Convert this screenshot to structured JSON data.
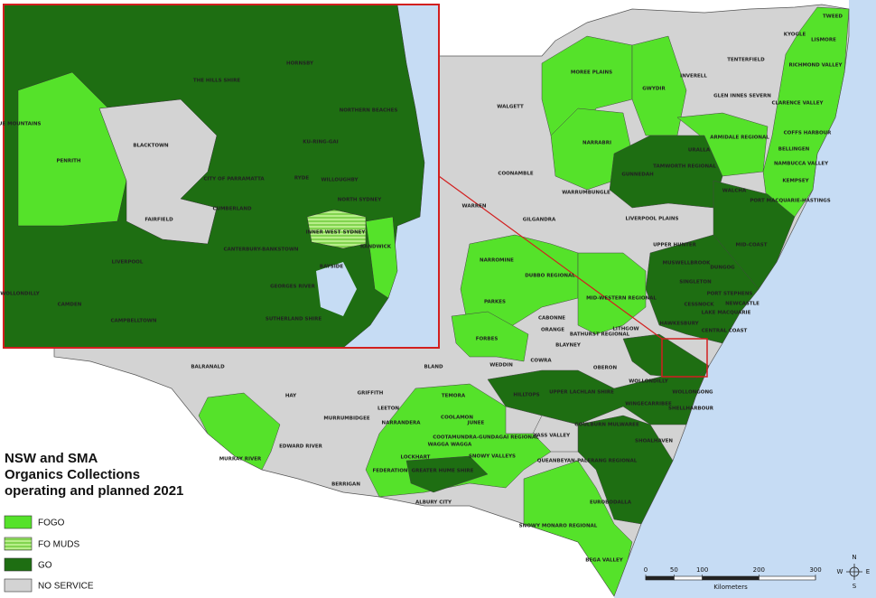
{
  "title": {
    "lines": [
      "NSW and SMA",
      "Organics Collections",
      "operating and planned 2021"
    ]
  },
  "legend": [
    {
      "label": "FOGO"
    },
    {
      "label": "FO MUDS"
    },
    {
      "label": "GO"
    },
    {
      "label": "NO SERVICE"
    }
  ],
  "scale": {
    "ticks": [
      0,
      50,
      100,
      200,
      300
    ],
    "unit": "Kilometers"
  },
  "compass": [
    "N",
    "E",
    "S",
    "W"
  ],
  "regions": [
    "TWEED",
    "KYOGLE",
    "LISMORE",
    "TENTERFIELD",
    "RICHMOND VALLEY",
    "MOREE PLAINS",
    "INVERELL",
    "GWYDIR",
    "GLEN INNES SEVERN",
    "CLARENCE VALLEY",
    "WALGETT",
    "NARRABRI",
    "ARMIDALE REGIONAL",
    "COFFS HARBOUR",
    "BELLINGEN",
    "NAMBUCCA VALLEY",
    "URALLA",
    "TAMWORTH REGIONAL",
    "GUNNEDAH",
    "COONAMBLE",
    "KEMPSEY",
    "WALCHA",
    "WARRUMBUNGLE",
    "PORT MACQUARIE-HASTINGS",
    "LIVERPOOL PLAINS",
    "GILGANDRA",
    "WARREN",
    "MID-COAST",
    "UPPER HUNTER",
    "NARROMINE",
    "DUBBO REGIONAL",
    "MUSWELLBROOK",
    "DUNGOG",
    "SINGLETON",
    "PORT STEPHENS",
    "MID-WESTERN REGIONAL",
    "PARKES",
    "NEWCASTLE",
    "CESSNOCK",
    "LAKE MACQUARIE",
    "CABONNE",
    "BATHURST REGIONAL",
    "FORBES",
    "ORANGE",
    "BLAYNEY",
    "LITHGOW",
    "HAWKESBURY",
    "CENTRAL COAST",
    "BALRANALD",
    "BLAND",
    "WEDDIN",
    "COWRA",
    "OBERON",
    "HAY",
    "GRIFFITH",
    "LEETON",
    "HILLTOPS",
    "UPPER LACHLAN SHIRE",
    "WOLLONDILLY",
    "WOLLONGONG",
    "SHELLHARBOUR",
    "TEMORA",
    "NARRANDERA",
    "MURRUMBIDGEE",
    "COOLAMON",
    "JUNEE",
    "GOULBURN MULWAREE",
    "WINGECARRIBEE",
    "YASS VALLEY",
    "SHOALHAVEN",
    "COOTAMUNDRA-GUNDAGAI REGIONAL",
    "WAGGA WAGGA",
    "EDWARD RIVER",
    "MURRAY RIVER",
    "LOCKHART",
    "SNOWY VALLEYS",
    "QUEANBEYAN-PALERANG REGIONAL",
    "FEDERATION",
    "GREATER HUME SHIRE",
    "BERRIGAN",
    "ALBURY CITY",
    "EUROBODALLA",
    "SNOWY MONARO REGIONAL",
    "BEGA VALLEY"
  ],
  "inset_regions": [
    "THE HILLS SHIRE",
    "HORNSBY",
    "NORTHERN BEACHES",
    "KU-RING-GAI",
    "BLUE MOUNTAINS",
    "BLACKTOWN",
    "PENRITH",
    "CITY OF PARRAMATTA",
    "RYDE",
    "WILLOUGHBY",
    "CUMBERLAND",
    "NORTH SYDNEY",
    "FAIRFIELD",
    "INNER WEST",
    "SYDNEY",
    "RANDWICK",
    "CANTERBURY-BANKSTOWN",
    "BAYSIDE",
    "LIVERPOOL",
    "GEORGES RIVER",
    "WOLLONDILLY",
    "CAMDEN",
    "CAMPBELLTOWN",
    "SUTHERLAND SHIRE"
  ]
}
